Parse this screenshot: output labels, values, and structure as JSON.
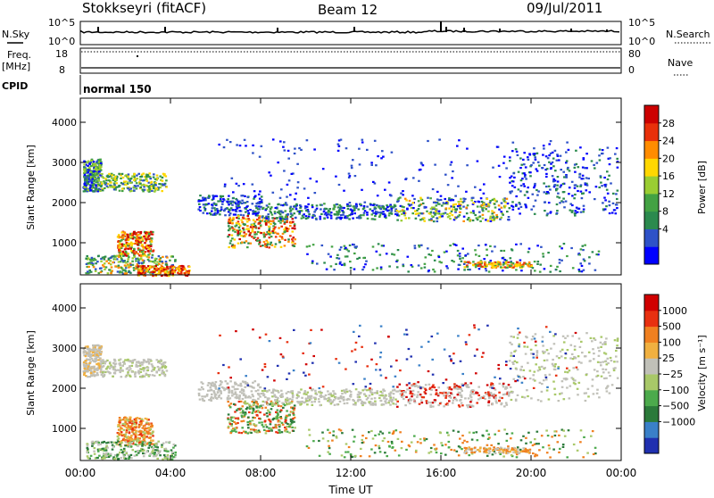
{
  "header": {
    "title": "Stokkseyri (fitACF)",
    "beam": "Beam 12",
    "date": "09/Jul/2011"
  },
  "chart_data": [
    {
      "type": "line",
      "name": "nsky-nsearch-panel",
      "left_label": "N.Sky",
      "right_label": "N.Search",
      "left_ticks": [
        "10^5",
        "10^0"
      ],
      "right_ticks": [
        "10^5",
        "10^0"
      ]
    },
    {
      "type": "line",
      "name": "freq-nave-panel",
      "left_label_1": "Freq.",
      "left_label_2": "[MHz]",
      "right_label": "Nave",
      "left_ticks": [
        "18",
        "8"
      ],
      "right_ticks": [
        "80",
        "0"
      ]
    },
    {
      "type": "table",
      "name": "cpid-panel",
      "label": "CPID",
      "mode": "normal 150"
    },
    {
      "type": "heatmap",
      "name": "power-panel",
      "ylabel": "Slant Range [km]",
      "yticks": [
        "1000",
        "2000",
        "3000",
        "4000"
      ],
      "ylim": [
        200,
        4600
      ],
      "colorbar_label": "Power [dB]",
      "colorbar_ticks": [
        "28",
        "24",
        "20",
        "16",
        "12",
        "8",
        "4"
      ],
      "colorbar_colors": [
        "#0000ff",
        "#2e52c8",
        "#2b8a4e",
        "#43a243",
        "#9acd32",
        "#ffd700",
        "#ff8c00",
        "#e8300a",
        "#cc0000"
      ]
    },
    {
      "type": "heatmap",
      "name": "velocity-panel",
      "ylabel": "Slant Range [km]",
      "yticks": [
        "1000",
        "2000",
        "3000",
        "4000"
      ],
      "ylim": [
        200,
        4600
      ],
      "colorbar_label": "Velocity [m s⁻¹]",
      "colorbar_ticks": [
        "1000",
        "500",
        "100",
        "25",
        "−25",
        "−100",
        "−500",
        "−1000"
      ],
      "colorbar_colors": [
        "#2030b0",
        "#3a80c8",
        "#2b7a3a",
        "#4caa4c",
        "#a8c868",
        "#c0c0b8",
        "#f0b040",
        "#f08020",
        "#e83010",
        "#d00000"
      ],
      "xlabel": "Time UT",
      "xticks": [
        "00:00",
        "04:00",
        "08:00",
        "12:00",
        "16:00",
        "20:00",
        "00:00"
      ]
    }
  ]
}
